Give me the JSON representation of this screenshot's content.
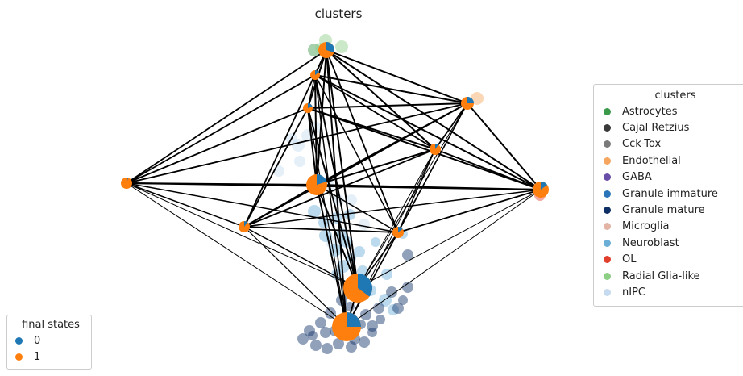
{
  "title": "clusters",
  "legend_clusters": {
    "title": "clusters",
    "entries": [
      {
        "label": "Astrocytes",
        "color": "#3a9a4a"
      },
      {
        "label": "Cajal Retzius",
        "color": "#3a3a3a"
      },
      {
        "label": "Cck-Tox",
        "color": "#7a7a7a"
      },
      {
        "label": "Endothelial",
        "color": "#f6a65e"
      },
      {
        "label": "GABA",
        "color": "#6a4fa8"
      },
      {
        "label": "Granule immature",
        "color": "#2a74b8"
      },
      {
        "label": "Granule mature",
        "color": "#0e2f66"
      },
      {
        "label": "Microglia",
        "color": "#e2b5a6"
      },
      {
        "label": "Neuroblast",
        "color": "#6baed6"
      },
      {
        "label": "OL",
        "color": "#e2402e"
      },
      {
        "label": "Radial Glia-like",
        "color": "#8ccf85"
      },
      {
        "label": "nIPC",
        "color": "#c6dbef"
      }
    ]
  },
  "legend_states": {
    "title": "final states",
    "entries": [
      {
        "label": "0",
        "color": "#1f77b4"
      },
      {
        "label": "1",
        "color": "#ff7f0e"
      }
    ]
  }
}
